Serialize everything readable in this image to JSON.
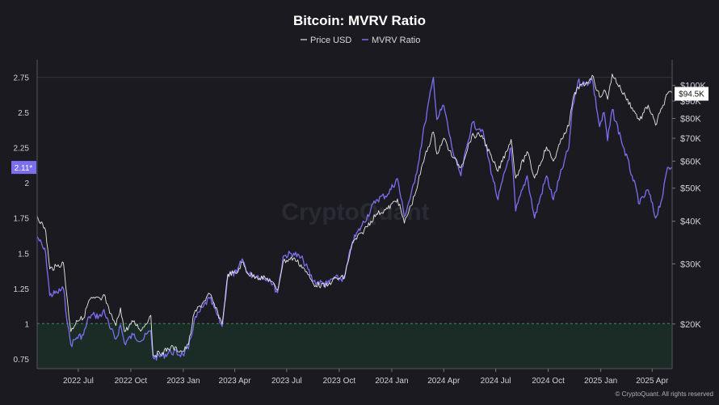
{
  "chart_data": {
    "type": "line",
    "title": "Bitcoin: MVRV Ratio",
    "legend": [
      "Price USD",
      "MVRV Ratio"
    ],
    "legend_position": "top-center",
    "x_axis_labels": [
      {
        "date": "2022-07-01",
        "label": "2022 Jul"
      },
      {
        "date": "2022-10-01",
        "label": "2022 Oct"
      },
      {
        "date": "2023-01-01",
        "label": "2023 Jan"
      },
      {
        "date": "2023-04-01",
        "label": "2023 Apr"
      },
      {
        "date": "2023-07-01",
        "label": "2023 Jul"
      },
      {
        "date": "2023-10-01",
        "label": "2023 Oct"
      },
      {
        "date": "2024-01-01",
        "label": "2024 Jan"
      },
      {
        "date": "2024-04-01",
        "label": "2024 Apr"
      },
      {
        "date": "2024-07-01",
        "label": "2024 Jul"
      },
      {
        "date": "2024-10-01",
        "label": "2024 Oct"
      },
      {
        "date": "2025-01-01",
        "label": "2025 Jan"
      },
      {
        "date": "2025-04-01",
        "label": "2025 Apr"
      }
    ],
    "xlim": [
      "2022-04-20",
      "2025-05-06"
    ],
    "left_axis": {
      "ticks": [
        0.75,
        1,
        1.25,
        1.5,
        1.75,
        2,
        2.25,
        2.5,
        2.75
      ],
      "tick_labels": [
        "0.75",
        "1",
        "1.25",
        "1.5",
        "1.75",
        "2",
        "2.25",
        "2.5",
        "2.75"
      ],
      "ylim": [
        0.68,
        2.84
      ],
      "current_value_label": "2.11*",
      "current_value": 2.11,
      "threshold": 1
    },
    "right_axis": {
      "scale": "log",
      "ticks": [
        20000,
        30000,
        40000,
        50000,
        60000,
        70000,
        80000,
        90000,
        100000
      ],
      "tick_labels": [
        "$20K",
        "$30K",
        "$40K",
        "$50K",
        "$60K",
        "$70K",
        "$80K",
        "$90K",
        "$100K"
      ],
      "ylim": [
        14800,
        115000
      ],
      "current_value_label": "$94.5K",
      "current_value": 94500
    },
    "series": [
      {
        "name": "Price USD",
        "color": "#e8e8e8",
        "axis": "right",
        "points": [
          [
            "2022-04-20",
            41500
          ],
          [
            "2022-05-05",
            37500
          ],
          [
            "2022-05-12",
            29000
          ],
          [
            "2022-05-25",
            29500
          ],
          [
            "2022-06-05",
            30200
          ],
          [
            "2022-06-13",
            22500
          ],
          [
            "2022-06-18",
            19000
          ],
          [
            "2022-06-28",
            20500
          ],
          [
            "2022-07-10",
            20800
          ],
          [
            "2022-07-20",
            23500
          ],
          [
            "2022-07-30",
            23800
          ],
          [
            "2022-08-10",
            23500
          ],
          [
            "2022-08-15",
            24400
          ],
          [
            "2022-08-25",
            21500
          ],
          [
            "2022-09-05",
            19800
          ],
          [
            "2022-09-13",
            22300
          ],
          [
            "2022-09-20",
            19000
          ],
          [
            "2022-10-05",
            20300
          ],
          [
            "2022-10-20",
            19200
          ],
          [
            "2022-11-05",
            21200
          ],
          [
            "2022-11-09",
            16200
          ],
          [
            "2022-11-25",
            16500
          ],
          [
            "2022-12-10",
            17100
          ],
          [
            "2022-12-31",
            16600
          ],
          [
            "2023-01-10",
            17400
          ],
          [
            "2023-01-20",
            21500
          ],
          [
            "2023-02-05",
            23200
          ],
          [
            "2023-02-16",
            24500
          ],
          [
            "2023-03-10",
            20000
          ],
          [
            "2023-03-20",
            28000
          ],
          [
            "2023-04-05",
            28200
          ],
          [
            "2023-04-14",
            30400
          ],
          [
            "2023-04-25",
            28000
          ],
          [
            "2023-05-10",
            27500
          ],
          [
            "2023-06-01",
            27000
          ],
          [
            "2023-06-15",
            25100
          ],
          [
            "2023-06-25",
            30500
          ],
          [
            "2023-07-13",
            31200
          ],
          [
            "2023-07-30",
            29300
          ],
          [
            "2023-08-17",
            26200
          ],
          [
            "2023-09-10",
            25800
          ],
          [
            "2023-09-20",
            27000
          ],
          [
            "2023-10-10",
            27400
          ],
          [
            "2023-10-24",
            34500
          ],
          [
            "2023-11-10",
            37000
          ],
          [
            "2023-12-05",
            42000
          ],
          [
            "2023-12-25",
            43500
          ],
          [
            "2024-01-11",
            46500
          ],
          [
            "2024-01-23",
            39500
          ],
          [
            "2024-02-10",
            47500
          ],
          [
            "2024-02-28",
            62000
          ],
          [
            "2024-03-14",
            73000
          ],
          [
            "2024-03-20",
            63000
          ],
          [
            "2024-04-01",
            70000
          ],
          [
            "2024-04-17",
            61500
          ],
          [
            "2024-05-01",
            57500
          ],
          [
            "2024-05-20",
            71000
          ],
          [
            "2024-06-07",
            71500
          ],
          [
            "2024-06-25",
            60500
          ],
          [
            "2024-07-05",
            56000
          ],
          [
            "2024-07-28",
            69500
          ],
          [
            "2024-08-05",
            53500
          ],
          [
            "2024-08-25",
            64000
          ],
          [
            "2024-09-07",
            53500
          ],
          [
            "2024-09-28",
            66000
          ],
          [
            "2024-10-10",
            60000
          ],
          [
            "2024-10-29",
            72500
          ],
          [
            "2024-11-06",
            76000
          ],
          [
            "2024-11-13",
            90500
          ],
          [
            "2024-11-22",
            99000
          ],
          [
            "2024-12-05",
            100500
          ],
          [
            "2024-12-17",
            107000
          ],
          [
            "2024-12-30",
            92500
          ],
          [
            "2025-01-07",
            97000
          ],
          [
            "2025-01-13",
            91000
          ],
          [
            "2025-01-21",
            108000
          ],
          [
            "2025-02-05",
            97500
          ],
          [
            "2025-02-25",
            86000
          ],
          [
            "2025-03-10",
            79000
          ],
          [
            "2025-03-25",
            87500
          ],
          [
            "2025-04-07",
            76500
          ],
          [
            "2025-04-20",
            87500
          ],
          [
            "2025-04-28",
            94500
          ],
          [
            "2025-05-06",
            95000
          ]
        ]
      },
      {
        "name": "MVRV Ratio",
        "color": "#7b6ff0",
        "axis": "left",
        "points": [
          [
            "2022-04-20",
            1.62
          ],
          [
            "2022-05-05",
            1.5
          ],
          [
            "2022-05-12",
            1.2
          ],
          [
            "2022-05-25",
            1.22
          ],
          [
            "2022-06-05",
            1.25
          ],
          [
            "2022-06-13",
            0.98
          ],
          [
            "2022-06-18",
            0.85
          ],
          [
            "2022-06-28",
            0.9
          ],
          [
            "2022-07-10",
            0.92
          ],
          [
            "2022-07-20",
            1.05
          ],
          [
            "2022-07-30",
            1.06
          ],
          [
            "2022-08-10",
            1.05
          ],
          [
            "2022-08-15",
            1.1
          ],
          [
            "2022-08-25",
            0.97
          ],
          [
            "2022-09-05",
            0.89
          ],
          [
            "2022-09-13",
            0.99
          ],
          [
            "2022-09-20",
            0.86
          ],
          [
            "2022-10-05",
            0.92
          ],
          [
            "2022-10-20",
            0.88
          ],
          [
            "2022-11-05",
            0.95
          ],
          [
            "2022-11-09",
            0.76
          ],
          [
            "2022-11-25",
            0.77
          ],
          [
            "2022-12-10",
            0.8
          ],
          [
            "2022-12-31",
            0.78
          ],
          [
            "2023-01-10",
            0.82
          ],
          [
            "2023-01-20",
            1.02
          ],
          [
            "2023-02-05",
            1.12
          ],
          [
            "2023-02-16",
            1.18
          ],
          [
            "2023-03-10",
            0.98
          ],
          [
            "2023-03-20",
            1.35
          ],
          [
            "2023-04-05",
            1.36
          ],
          [
            "2023-04-14",
            1.46
          ],
          [
            "2023-04-25",
            1.35
          ],
          [
            "2023-05-10",
            1.34
          ],
          [
            "2023-06-01",
            1.32
          ],
          [
            "2023-06-15",
            1.22
          ],
          [
            "2023-06-25",
            1.48
          ],
          [
            "2023-07-13",
            1.5
          ],
          [
            "2023-07-30",
            1.45
          ],
          [
            "2023-08-17",
            1.3
          ],
          [
            "2023-09-10",
            1.28
          ],
          [
            "2023-09-20",
            1.32
          ],
          [
            "2023-10-10",
            1.32
          ],
          [
            "2023-10-24",
            1.58
          ],
          [
            "2023-11-10",
            1.7
          ],
          [
            "2023-12-05",
            1.88
          ],
          [
            "2023-12-25",
            1.92
          ],
          [
            "2024-01-11",
            2.03
          ],
          [
            "2024-01-23",
            1.76
          ],
          [
            "2024-02-10",
            2.0
          ],
          [
            "2024-02-28",
            2.42
          ],
          [
            "2024-03-14",
            2.75
          ],
          [
            "2024-03-20",
            2.45
          ],
          [
            "2024-04-01",
            2.55
          ],
          [
            "2024-04-17",
            2.22
          ],
          [
            "2024-05-01",
            2.05
          ],
          [
            "2024-05-20",
            2.42
          ],
          [
            "2024-06-07",
            2.38
          ],
          [
            "2024-06-25",
            2.05
          ],
          [
            "2024-07-05",
            1.88
          ],
          [
            "2024-07-28",
            2.25
          ],
          [
            "2024-08-05",
            1.8
          ],
          [
            "2024-08-25",
            2.05
          ],
          [
            "2024-09-07",
            1.75
          ],
          [
            "2024-09-28",
            2.05
          ],
          [
            "2024-10-10",
            1.88
          ],
          [
            "2024-10-29",
            2.15
          ],
          [
            "2024-11-06",
            2.25
          ],
          [
            "2024-11-13",
            2.55
          ],
          [
            "2024-11-22",
            2.72
          ],
          [
            "2024-12-05",
            2.7
          ],
          [
            "2024-12-17",
            2.74
          ],
          [
            "2024-12-30",
            2.4
          ],
          [
            "2025-01-07",
            2.5
          ],
          [
            "2025-01-13",
            2.3
          ],
          [
            "2025-01-21",
            2.52
          ],
          [
            "2025-02-05",
            2.32
          ],
          [
            "2025-02-25",
            2.05
          ],
          [
            "2025-03-10",
            1.85
          ],
          [
            "2025-03-25",
            1.95
          ],
          [
            "2025-04-07",
            1.75
          ],
          [
            "2025-04-20",
            1.92
          ],
          [
            "2025-04-28",
            2.11
          ],
          [
            "2025-05-06",
            2.11
          ]
        ]
      }
    ],
    "watermark": "CryptoQuant",
    "footer": "© CryptoQuant. All rights reserved",
    "grid": false
  },
  "colors": {
    "background": "#1a1a20",
    "price": "#e8e8e8",
    "mvrv": "#7b6ff0",
    "undervalued_zone": "#1e3a2c",
    "threshold_line": "#3f8a5a"
  }
}
